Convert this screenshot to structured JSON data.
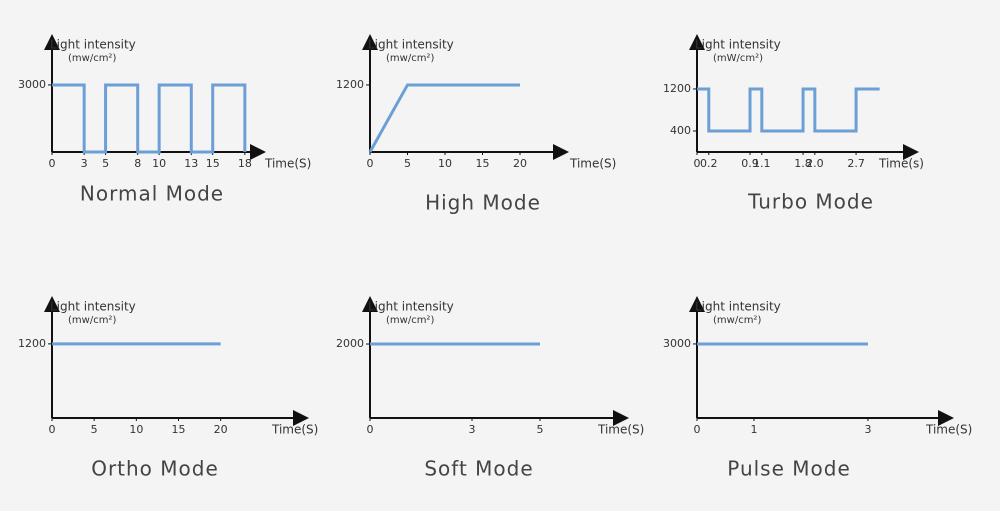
{
  "chart_data": [
    {
      "type": "line",
      "title": "Normal Mode",
      "y_label": "Light intensity",
      "y_unit": "(mw/cm²)",
      "x_label": "Time(S)",
      "color": "#6c9fd6",
      "x": [
        0,
        3,
        3,
        5,
        5,
        8,
        8,
        10,
        10,
        13,
        13,
        15,
        15,
        18,
        18
      ],
      "values": [
        3000,
        3000,
        0,
        0,
        3000,
        3000,
        0,
        0,
        3000,
        3000,
        0,
        0,
        3000,
        3000,
        0
      ],
      "xlim": [
        0,
        19.6
      ],
      "ylim": [
        0,
        5100
      ],
      "xticks": [
        0,
        3,
        5,
        8,
        10,
        13,
        15,
        18
      ],
      "yticks": [
        3000
      ]
    },
    {
      "type": "line",
      "title": "High Mode",
      "y_label": "Light intensity",
      "y_unit": "(mw/cm²)",
      "x_label": "Time(S)",
      "color": "#6c9fd6",
      "x": [
        0,
        5,
        20
      ],
      "values": [
        0,
        1200,
        1200
      ],
      "xlim": [
        0,
        26
      ],
      "ylim": [
        0,
        2040
      ],
      "xticks": [
        0,
        5,
        10,
        15,
        20
      ],
      "yticks": [
        1200
      ]
    },
    {
      "type": "line",
      "title": "Turbo Mode",
      "y_label": "Light intensity",
      "y_unit": "(mW/cm²)",
      "x_label": "Time(s)",
      "color": "#6c9fd6",
      "x": [
        0,
        0.2,
        0.2,
        0.9,
        0.9,
        1.1,
        1.1,
        1.8,
        1.8,
        2.0,
        2.0,
        2.7,
        2.7,
        3.1
      ],
      "values": [
        1200,
        1200,
        400,
        400,
        1200,
        1200,
        400,
        400,
        1200,
        1200,
        400,
        400,
        1200,
        1200
      ],
      "xlim": [
        0,
        3.7
      ],
      "ylim": [
        0,
        2170
      ],
      "xticks": [
        0,
        0.2,
        0.9,
        1.1,
        1.8,
        {
          "value": 2,
          "label": "2.0"
        },
        2.7
      ],
      "yticks": [
        400,
        1200
      ]
    },
    {
      "type": "line",
      "title": "Ortho Mode",
      "y_label": "Light intensity",
      "y_unit": "(mw/cm²)",
      "x_label": "Time(S)",
      "color": "#6c9fd6",
      "x": [
        0,
        20
      ],
      "values": [
        1200,
        1200
      ],
      "xlim": [
        0,
        30
      ],
      "ylim": [
        0,
        1910
      ],
      "xticks": [
        0,
        5,
        10,
        15,
        20
      ],
      "yticks": [
        1200
      ]
    },
    {
      "type": "line",
      "title": "Soft Mode",
      "y_label": "Light intensity",
      "y_unit": "(mw/cm²)",
      "x_label": "Time(S)",
      "color": "#6c9fd6",
      "x": [
        0,
        5
      ],
      "values": [
        2000,
        2000
      ],
      "xlim": [
        0,
        7.5
      ],
      "ylim": [
        0,
        3190
      ],
      "xticks": [
        0,
        3,
        5
      ],
      "yticks": [
        2000
      ]
    },
    {
      "type": "line",
      "title": "Pulse Mode",
      "y_label": "Light intensity",
      "y_unit": "(mw/cm²)",
      "x_label": "Time(S)",
      "color": "#6c9fd6",
      "x": [
        0,
        3
      ],
      "values": [
        3000,
        3000
      ],
      "xlim": [
        0,
        4.44
      ],
      "ylim": [
        0,
        4780
      ],
      "xticks": [
        0,
        1,
        3
      ],
      "yticks": [
        3000
      ]
    }
  ]
}
